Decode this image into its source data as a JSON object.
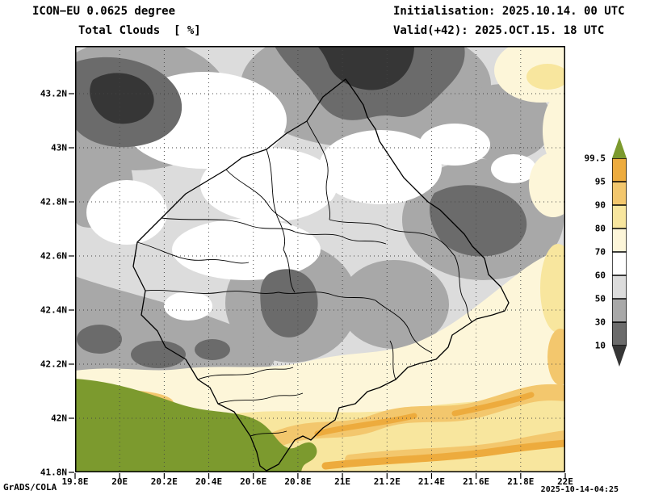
{
  "header": {
    "model_line": "ICON−EU 0.0625 degree",
    "variable_line": "Total Clouds  [ %]",
    "init_line": "Initialisation: 2025.10.14. 00 UTC",
    "valid_line": "Valid(+42): 2025.OCT.15. 18 UTC"
  },
  "axes": {
    "x_ticks": [
      "19.8E",
      "20E",
      "20.2E",
      "20.4E",
      "20.6E",
      "20.8E",
      "21E",
      "21.2E",
      "21.4E",
      "21.6E",
      "21.8E",
      "22E"
    ],
    "y_ticks": [
      "43.2N",
      "43N",
      "42.8N",
      "42.6N",
      "42.4N",
      "42.2N",
      "42N",
      "41.8N"
    ]
  },
  "colorbar": {
    "unit": "%",
    "levels": [
      "99.5",
      "95",
      "90",
      "80",
      "70",
      "60",
      "50",
      "30",
      "10"
    ],
    "colors": [
      "#7c9a2e",
      "#edab3d",
      "#f3c76d",
      "#f8e69e",
      "#fdf6d9",
      "#ffffff",
      "#dcdcdc",
      "#a8a8a8",
      "#6b6b6b",
      "#363636"
    ]
  },
  "footer": {
    "credit": "GrADS/COLA",
    "created": "2025-10-14-04:25"
  },
  "chart_data": {
    "type": "heatmap",
    "title": "Total Clouds [ %]",
    "model": "ICON-EU 0.0625 degree",
    "initialisation": "2025.10.14. 00 UTC",
    "valid": "2025.OCT.15. 18 UTC (+42)",
    "unit": "%",
    "x_axis_deg_east": [
      19.8,
      22.0
    ],
    "y_axis_deg_north": [
      41.8,
      43.2
    ],
    "contour_levels": [
      10,
      30,
      50,
      60,
      70,
      80,
      90,
      95,
      99.5
    ],
    "legend_position": "right",
    "grid": "dotted"
  }
}
